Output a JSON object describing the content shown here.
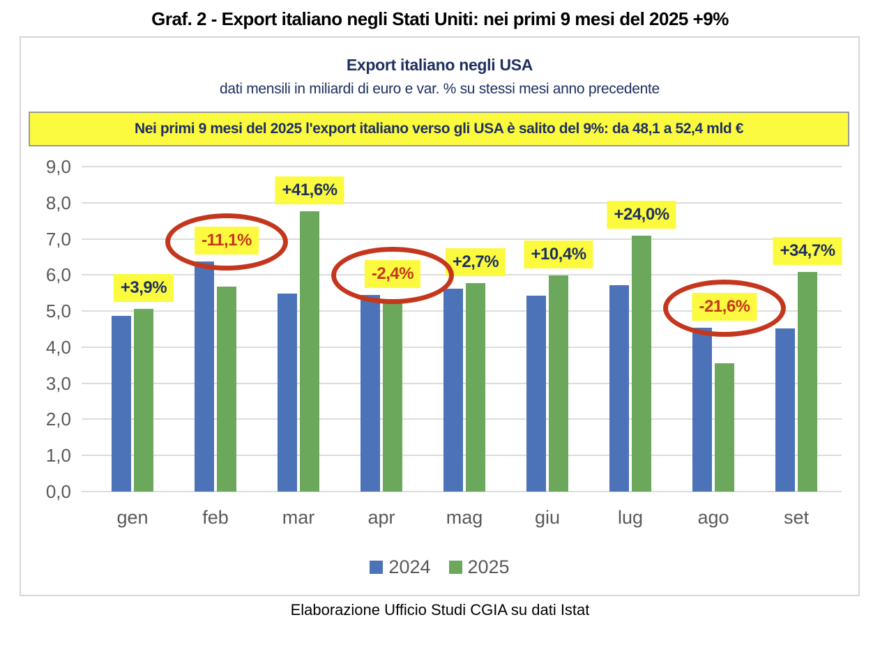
{
  "page": {
    "main_title": "Graf. 2 - Export italiano negli Stati Uniti: nei primi 9 mesi del 2025 +9%",
    "footer": "Elaborazione Ufficio Studi CGIA su dati Istat"
  },
  "chart": {
    "title": "Export italiano negli USA",
    "subtitle": "dati mensili in miliardi di euro e var. % su stessi mesi anno precedente",
    "banner": "Nei primi 9 mesi del 2025 l'export italiano verso gli USA è salito del 9%: da 48,1 a 52,4 mld €"
  },
  "chart_data": {
    "type": "bar",
    "title": "Export italiano negli USA",
    "subtitle": "dati mensili in miliardi di euro e var. % su stessi mesi anno precedente",
    "categories": [
      "gen",
      "feb",
      "mar",
      "apr",
      "mag",
      "giu",
      "lug",
      "ago",
      "set"
    ],
    "series": [
      {
        "name": "2024",
        "color": "#4c72b8",
        "values": [
          4.87,
          6.38,
          5.48,
          5.45,
          5.62,
          5.42,
          5.72,
          4.53,
          4.52
        ]
      },
      {
        "name": "2025",
        "color": "#6ba85c",
        "values": [
          5.06,
          5.68,
          7.77,
          5.32,
          5.78,
          5.98,
          7.09,
          3.55,
          6.09
        ]
      }
    ],
    "pct_labels": [
      {
        "text": "+3,9%",
        "negative": false,
        "circled": false
      },
      {
        "text": "-11,1%",
        "negative": true,
        "circled": true
      },
      {
        "text": "+41,6%",
        "negative": false,
        "circled": false
      },
      {
        "text": "-2,4%",
        "negative": true,
        "circled": true
      },
      {
        "text": "+2,7%",
        "negative": false,
        "circled": false
      },
      {
        "text": "+10,4%",
        "negative": false,
        "circled": false
      },
      {
        "text": "+24,0%",
        "negative": false,
        "circled": false
      },
      {
        "text": "-21,6%",
        "negative": true,
        "circled": true
      },
      {
        "text": "+34,7%",
        "negative": false,
        "circled": false
      }
    ],
    "y_ticks": [
      "9,0",
      "8,0",
      "7,0",
      "6,0",
      "5,0",
      "4,0",
      "3,0",
      "2,0",
      "1,0",
      "0,0"
    ],
    "ylim": [
      0,
      9
    ],
    "grid": true,
    "legend_position": "bottom",
    "annotation_totals": "da 48,1 a 52,4 mld €",
    "colors": {
      "bar_2024": "#4c72b8",
      "bar_2025": "#6ba85c",
      "highlight_yellow": "#fbfa3e",
      "navy_text": "#1f3060",
      "negative_red": "#c4371d",
      "axis_gray": "#595959",
      "gridline": "#dcdcdc"
    }
  }
}
